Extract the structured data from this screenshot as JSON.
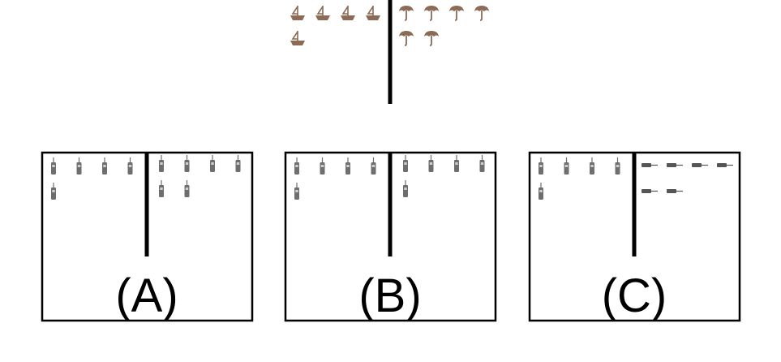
{
  "colors": {
    "line": "#000000",
    "boat": "#8c6a55",
    "umbrella": "#8c6a55",
    "phone": "#6e6e6e",
    "hose": "#555555"
  },
  "top_panel": {
    "left": {
      "icon": "boat-icon",
      "count": 5
    },
    "right": {
      "icon": "umbrella-icon",
      "count": 6
    }
  },
  "options": [
    {
      "label": "(A)",
      "left": {
        "icon": "walkie-talkie-icon",
        "count": 5
      },
      "right": {
        "icon": "walkie-talkie-icon",
        "count": 6
      }
    },
    {
      "label": "(B)",
      "left": {
        "icon": "walkie-talkie-icon",
        "count": 5
      },
      "right": {
        "icon": "walkie-talkie-icon",
        "count": 5
      }
    },
    {
      "label": "(C)",
      "left": {
        "icon": "walkie-talkie-icon",
        "count": 5
      },
      "right": {
        "icon": "pen-icon",
        "count": 6
      }
    }
  ]
}
